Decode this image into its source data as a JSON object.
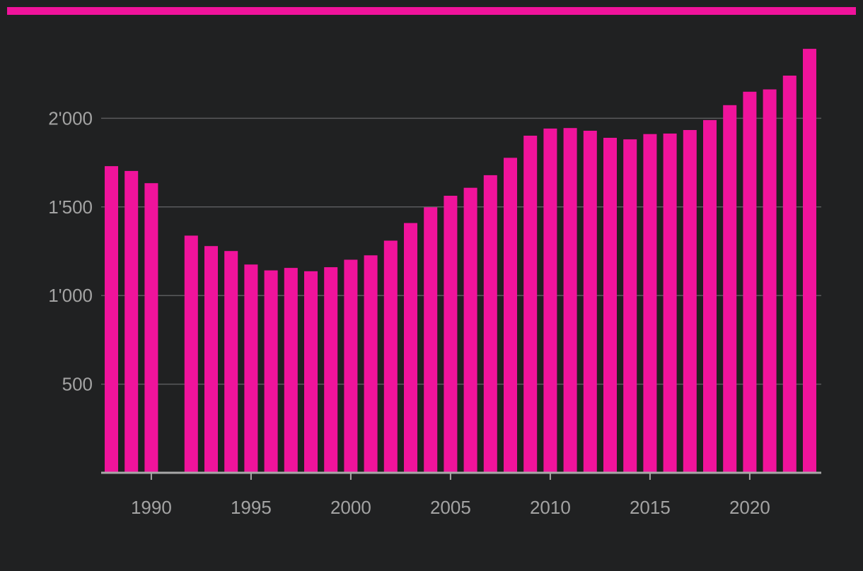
{
  "colors": {
    "background": "#202122",
    "accent": "#f0139b",
    "bar": "#f0139b",
    "grid": "#5a5b5d",
    "axis": "#a8a8a8",
    "tick_label": "#a3a3a3"
  },
  "chart_data": {
    "type": "bar",
    "title": "",
    "xlabel": "",
    "ylabel": "",
    "x": [
      1988,
      1989,
      1990,
      1991,
      1992,
      1993,
      1994,
      1995,
      1996,
      1997,
      1998,
      1999,
      2000,
      2001,
      2002,
      2003,
      2004,
      2005,
      2006,
      2007,
      2008,
      2009,
      2010,
      2011,
      2012,
      2013,
      2014,
      2015,
      2016,
      2017,
      2018,
      2019,
      2020,
      2021,
      2022,
      2023
    ],
    "values": [
      1730,
      1703,
      1634,
      null,
      1338,
      1279,
      1251,
      1175,
      1142,
      1156,
      1137,
      1160,
      1202,
      1227,
      1310,
      1409,
      1498,
      1563,
      1608,
      1679,
      1777,
      1902,
      1942,
      1945,
      1930,
      1890,
      1881,
      1911,
      1914,
      1934,
      1990,
      2074,
      2150,
      2163,
      2241,
      2392
    ],
    "ylim": [
      0,
      2500
    ],
    "yticks": [
      500,
      1000,
      1500,
      2000
    ],
    "ytick_labels": [
      "500",
      "1'000",
      "1'500",
      "2'000"
    ],
    "xticks": [
      1990,
      1995,
      2000,
      2005,
      2010,
      2015,
      2020
    ],
    "xtick_labels": [
      "1990",
      "1995",
      "2000",
      "2005",
      "2010",
      "2015",
      "2020"
    ],
    "grid": true,
    "legend": "none"
  }
}
